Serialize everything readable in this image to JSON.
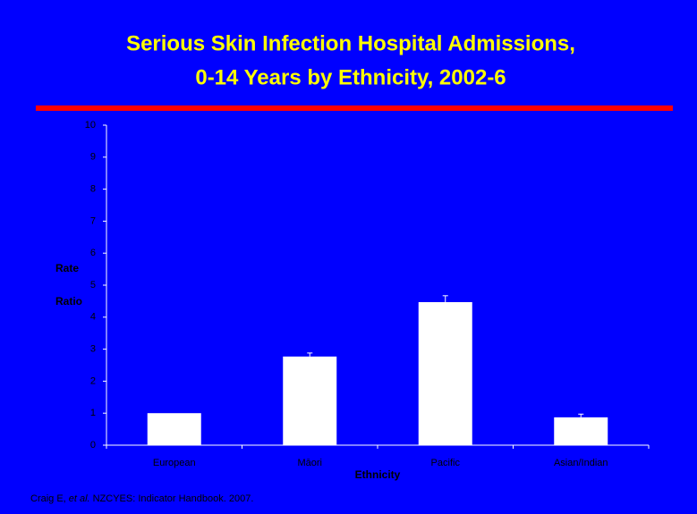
{
  "chart_data": {
    "type": "bar",
    "title": [
      "Serious Skin Infection Hospital Admissions,",
      "0-14 Years by Ethnicity, 2002-6"
    ],
    "y_label": [
      "Rate",
      "Ratio"
    ],
    "x_label": "Ethnicity",
    "categories": [
      "European",
      "Māori",
      "Pacific",
      "Asian/Indian"
    ],
    "values": [
      1.0,
      2.77,
      4.47,
      0.87
    ],
    "errors": [
      null,
      0.11,
      0.2,
      0.1
    ],
    "color": "#ffffff",
    "ylim": [
      0,
      10
    ],
    "yticks": [
      0,
      1,
      2,
      3,
      4,
      5,
      6,
      7,
      8,
      9,
      10
    ],
    "footnote": {
      "author": "Craig E,",
      "etal": "et al.",
      "rest": "NZCYES: Indicator Handbook. 2007."
    }
  }
}
